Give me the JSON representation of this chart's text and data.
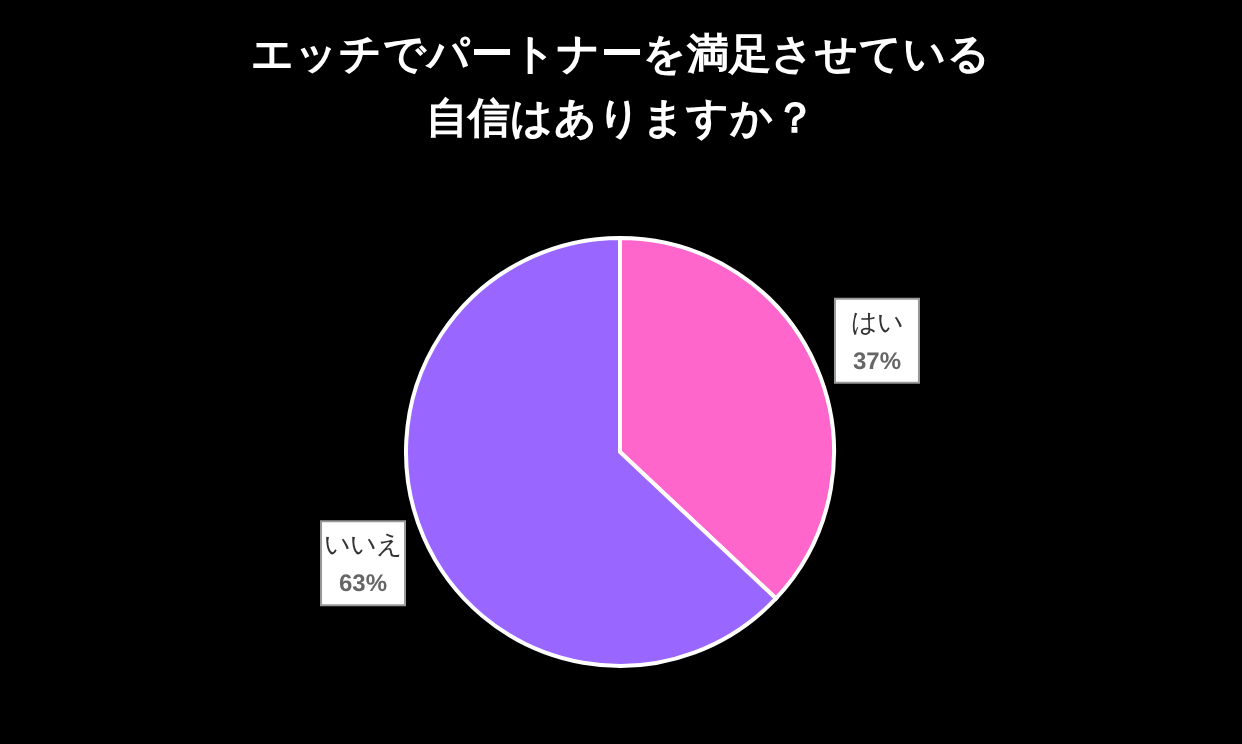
{
  "chart_data": {
    "type": "pie",
    "title": "エッチでパートナーを満足させている自信はありますか？",
    "categories": [
      "はい",
      "いいえ"
    ],
    "values": [
      37,
      63
    ],
    "value_labels": [
      "37%",
      "63%"
    ],
    "colors": [
      "#ff66cc",
      "#9966ff"
    ]
  }
}
